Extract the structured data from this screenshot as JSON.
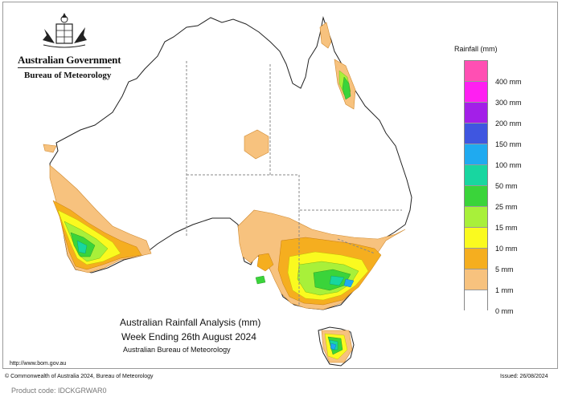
{
  "header": {
    "government": "Australian Government",
    "bureau": "Bureau of Meteorology"
  },
  "legend": {
    "title": "Rainfall (mm)",
    "entries": [
      {
        "label": "400 mm",
        "color": "#ff4fb3"
      },
      {
        "label": "300 mm",
        "color": "#ff1ff2"
      },
      {
        "label": "200 mm",
        "color": "#a31fe8"
      },
      {
        "label": "150 mm",
        "color": "#3f56e0"
      },
      {
        "label": "100 mm",
        "color": "#1faaf0"
      },
      {
        "label": "50 mm",
        "color": "#18d6a0"
      },
      {
        "label": "25 mm",
        "color": "#3ad43a"
      },
      {
        "label": "15 mm",
        "color": "#a8f03a"
      },
      {
        "label": "10 mm",
        "color": "#fafa1f"
      },
      {
        "label": "5 mm",
        "color": "#f5ae1f"
      },
      {
        "label": "1 mm",
        "color": "#f7c27e"
      },
      {
        "label": "0 mm",
        "color": "#ffffff"
      }
    ]
  },
  "caption": {
    "title": "Australian Rainfall Analysis (mm)",
    "subtitle": "Week Ending 26th August 2024",
    "organisation": "Australian Bureau of Meteorology"
  },
  "footer": {
    "website": "http://www.bom.gov.au",
    "copyright": "© Commonwealth of Australia 2024, Bureau of Meteorology",
    "issued": "Issued: 26/08/2024",
    "product_code": "Product code: IDCKGRWAR0"
  },
  "map_colors": {
    "land": "#ffffff",
    "outline": "#222222",
    "state_border": "#888888"
  }
}
